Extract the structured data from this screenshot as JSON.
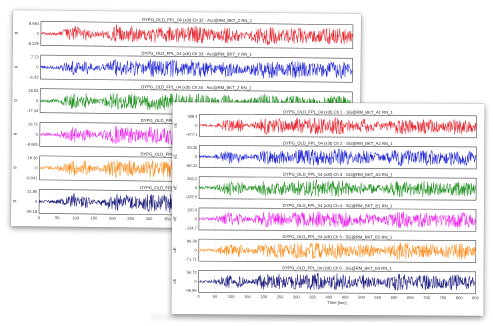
{
  "chart_data": [
    {
      "type": "line",
      "panel": "back",
      "xlim": [
        0,
        850
      ],
      "xticks": [
        "0",
        "50",
        "100",
        "150",
        "200",
        "250",
        "300",
        "350",
        "400",
        "450",
        "500",
        "550",
        "600",
        "650",
        "700",
        "750",
        "800",
        "850"
      ],
      "series": [
        {
          "name": "DYPG_OLD_FPL_04 (x3t) Ch 32 · Acc@RM_BKT_Z RN_1",
          "color": "#e8212b",
          "ylabel": "g",
          "yticks": [
            "8.684",
            "0",
            "-8.229"
          ]
        },
        {
          "name": "DYPG_OLD_FPL_04 (x3t) Ch 33 · Acc@RM_BKT_Y RN_1",
          "color": "#1f24d6",
          "ylabel": "g",
          "yticks": [
            "7.73",
            "0",
            "-6.33"
          ]
        },
        {
          "name": "DYPG_OLD_FPL_04 (x3t) Ch 34 · Acc@RM_BKT_Z RN_1",
          "color": "#1a8f1a",
          "ylabel": "g",
          "yticks": [
            "18.53",
            "0",
            "-17.34"
          ]
        },
        {
          "name": "DYPG_OLD_FPL_04 (x3t) Ch 35 · Acc@RM_BKT_X RN_1",
          "color": "#ee22ee",
          "ylabel": "g",
          "yticks": [
            "10.71",
            "0",
            "-9.065"
          ]
        },
        {
          "name": "DYPG_OLD_FPL_04 (x3t) Ch 36 · Acc@RM_BKT_Y RN_1",
          "color": "#ff8c1a",
          "ylabel": "g",
          "yticks": [
            "19.36",
            "0",
            "-6.041"
          ]
        },
        {
          "name": "DYPG_OLD_FPL_04 (x3t) Ch 37 · Acc@RM_BKT_Z RN_1",
          "color": "#14147a",
          "ylabel": "g",
          "yticks": [
            "31.85",
            "0",
            "-29.18"
          ]
        }
      ]
    },
    {
      "type": "line",
      "panel": "front",
      "xlabel": "Time [sec]",
      "xlim": [
        0,
        850
      ],
      "xticks": [
        "0",
        "50",
        "100",
        "150",
        "200",
        "250",
        "300",
        "350",
        "400",
        "450",
        "500",
        "550",
        "600",
        "650",
        "700",
        "750",
        "800",
        "850"
      ],
      "series": [
        {
          "name": "DYPG_OLD_FPL_04 (x3t) Ch 1 · SG@RM_BKT_A1 RN_1",
          "color": "#e8212b",
          "ylabel": "uE",
          "yticks": [
            "588.4",
            "0",
            "-477.1"
          ]
        },
        {
          "name": "DYPG_OLD_FPL_04 (x3t) Ch 2 · SG@RM_BKT_A2 RN_1",
          "color": "#1f24d6",
          "ylabel": "uE",
          "yticks": [
            "93.36",
            "0",
            "-80.32"
          ]
        },
        {
          "name": "DYPG_OLD_FPL_04 (x3t) Ch 3 · SG@RM_BKT_A3 RN_1",
          "color": "#1a8f1a",
          "ylabel": "uE",
          "yticks": [
            "282.2",
            "0",
            "-225.5"
          ]
        },
        {
          "name": "DYPG_OLD_FPL_04 (x3t) Ch 4 · SG@RM_BKT_B1 RN_1",
          "color": "#ee22ee",
          "ylabel": "uE",
          "yticks": [
            "120.3",
            "0",
            "-134.7"
          ]
        },
        {
          "name": "DYPG_OLD_FPL_04 (x3t) Ch 5 · SG@RM_BKT_B2 RN_1",
          "color": "#ff8c1a",
          "ylabel": "uE",
          "yticks": [
            "90.36",
            "0",
            "-71.71"
          ]
        },
        {
          "name": "DYPG_OLD_FPL_04 (x3t) Ch 6 · SG@RM_BKT_B3 RN_1",
          "color": "#14147a",
          "ylabel": "uE",
          "yticks": [
            "56.73",
            "0",
            "-46.95"
          ]
        }
      ]
    }
  ]
}
